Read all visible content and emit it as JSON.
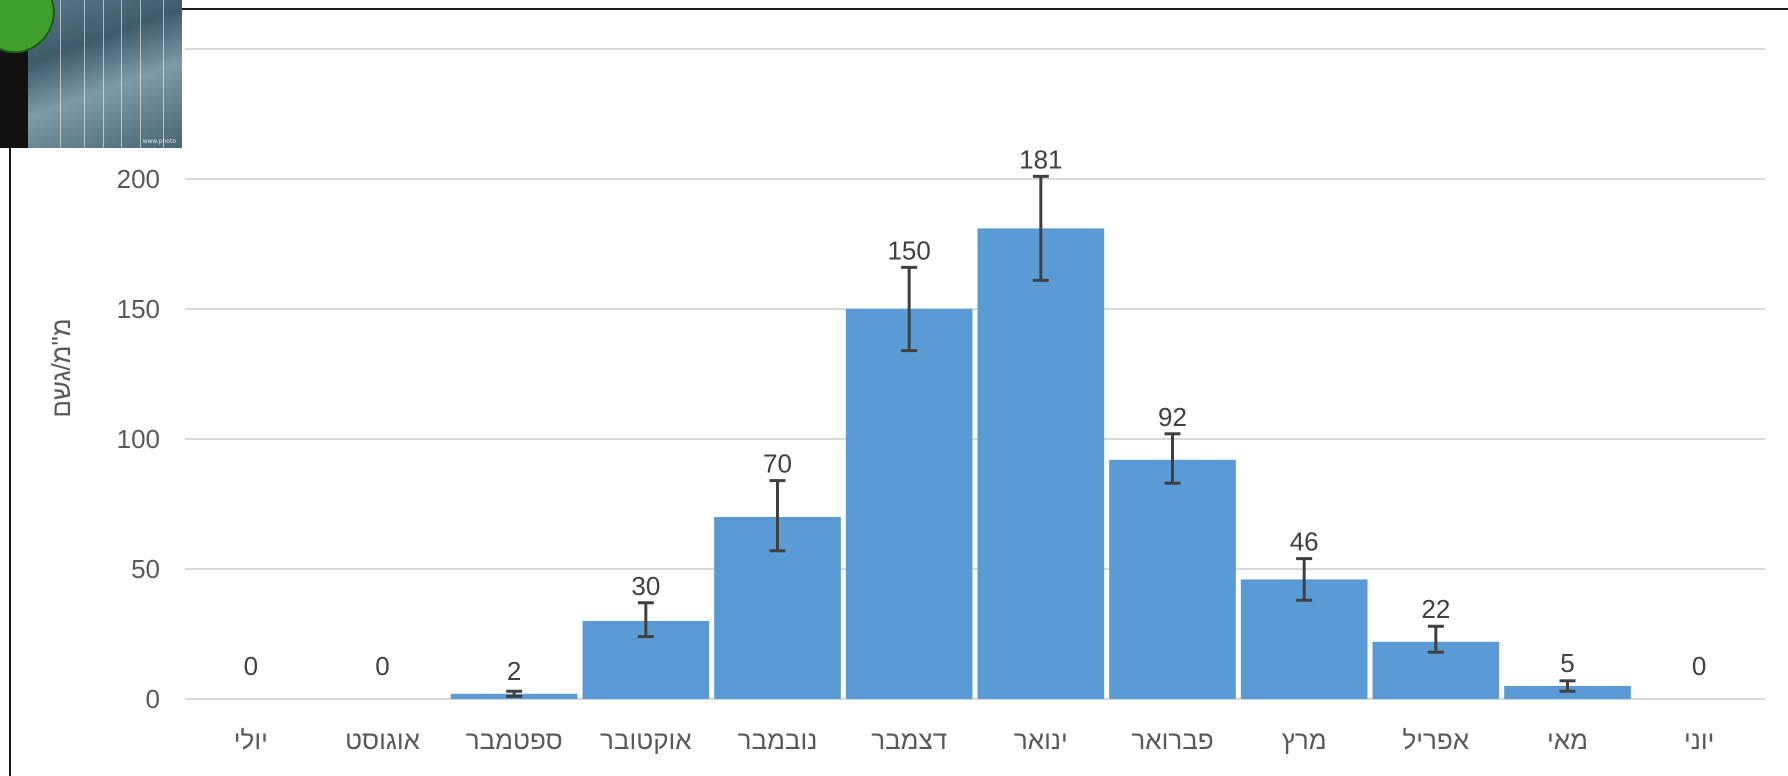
{
  "chart_data": {
    "type": "bar",
    "title": "",
    "xlabel": "",
    "ylabel": "מ\"מ/גשם",
    "ylim": [
      0,
      250
    ],
    "yticks": [
      0,
      50,
      100,
      150,
      200
    ],
    "grid": true,
    "categories": [
      "יולי",
      "אוגוסט",
      "ספטמבר",
      "אוקטובר",
      "נובמבר",
      "דצמבר",
      "ינואר",
      "פברואר",
      "מרץ",
      "אפריל",
      "מאי",
      "יוני"
    ],
    "values": [
      0,
      0,
      2,
      30,
      70,
      150,
      181,
      92,
      46,
      22,
      5,
      0
    ],
    "value_labels": [
      "0",
      "0",
      "2",
      "30",
      "70",
      "150",
      "181",
      "92",
      "46",
      "22",
      "5",
      "0"
    ],
    "error_bars": [
      null,
      null,
      [
        1,
        3
      ],
      [
        24,
        37
      ],
      [
        57,
        84
      ],
      [
        134,
        166
      ],
      [
        161,
        201
      ],
      [
        83,
        102
      ],
      [
        38,
        54
      ],
      [
        18,
        28
      ],
      [
        3,
        7
      ],
      null
    ],
    "bar_color": "#5b9bd5",
    "errorbar_color": "#404040"
  },
  "colors": {
    "grid": "#d9d9d9",
    "tick_text": "#595959",
    "label_text": "#404040"
  }
}
